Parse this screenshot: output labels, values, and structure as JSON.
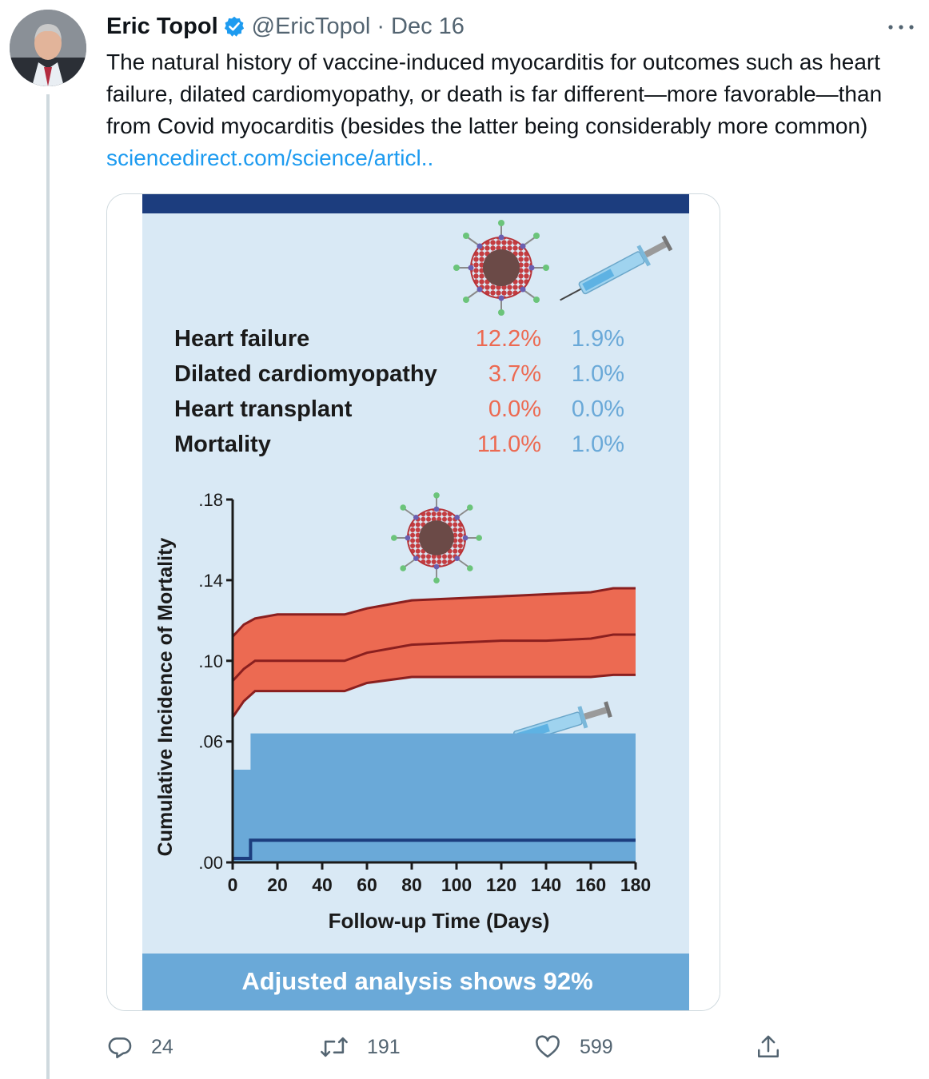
{
  "tweet": {
    "author_name": "Eric Topol",
    "handle": "@EricTopol",
    "separator": "·",
    "date": "Dec 16",
    "text": "The natural history of vaccine-induced myocarditis for outcomes such as heart failure, dilated cardiomyopathy, or death is far different—more favorable—than from Covid myocarditis (besides the latter being considerably more common)",
    "link_text": "sciencedirect.com/science/articl..",
    "icons": {
      "verified": "verified-badge-icon",
      "more": "more-icon"
    }
  },
  "figure": {
    "outcomes": [
      {
        "label": "Heart failure",
        "covid": "12.2%",
        "vaccine": "1.9%"
      },
      {
        "label": "Dilated cardiomyopathy",
        "covid": "3.7%",
        "vaccine": "1.0%"
      },
      {
        "label": "Heart transplant",
        "covid": "0.0%",
        "vaccine": "0.0%"
      },
      {
        "label": "Mortality",
        "covid": "11.0%",
        "vaccine": "1.0%"
      }
    ],
    "colors": {
      "covid": "#ec6a52",
      "vaccine": "#6aa9d8",
      "background": "#d9e9f5",
      "header": "#1c3d7e"
    },
    "banner_text": "Adjusted analysis shows 92%",
    "icons": {
      "virus": "virus-icon",
      "syringe": "syringe-icon"
    }
  },
  "chart_data": {
    "type": "area",
    "xlabel": "Follow-up Time (Days)",
    "ylabel": "Cumulative Incidence of Mortality",
    "xlim": [
      0,
      180
    ],
    "ylim": [
      0,
      0.18
    ],
    "x_ticks": [
      "0",
      "20",
      "40",
      "60",
      "80",
      "100",
      "120",
      "140",
      "160",
      "180"
    ],
    "y_ticks": [
      ".00",
      ".06",
      ".10",
      ".14",
      ".18"
    ],
    "series": [
      {
        "group": "covid",
        "x": [
          0,
          5,
          10,
          20,
          40,
          50,
          60,
          80,
          100,
          120,
          140,
          160,
          170,
          180
        ],
        "upper": [
          0.112,
          0.118,
          0.121,
          0.123,
          0.123,
          0.123,
          0.126,
          0.13,
          0.131,
          0.132,
          0.133,
          0.134,
          0.136,
          0.136
        ],
        "mid": [
          0.09,
          0.096,
          0.1,
          0.1,
          0.1,
          0.1,
          0.104,
          0.108,
          0.109,
          0.11,
          0.11,
          0.111,
          0.113,
          0.113
        ],
        "lower": [
          0.072,
          0.08,
          0.085,
          0.085,
          0.085,
          0.085,
          0.089,
          0.092,
          0.092,
          0.092,
          0.092,
          0.092,
          0.093,
          0.093
        ]
      },
      {
        "group": "vaccine",
        "x": [
          0,
          8,
          8,
          180
        ],
        "upper": [
          0.046,
          0.046,
          0.064,
          0.064
        ],
        "mid": [
          0.002,
          0.002,
          0.011,
          0.011
        ],
        "lower": [
          0,
          0,
          0,
          0
        ]
      }
    ]
  },
  "actions": {
    "reply": {
      "icon": "reply-icon",
      "count": "24"
    },
    "retweet": {
      "icon": "retweet-icon",
      "count": "191"
    },
    "like": {
      "icon": "like-icon",
      "count": "599"
    },
    "share": {
      "icon": "share-icon"
    }
  }
}
